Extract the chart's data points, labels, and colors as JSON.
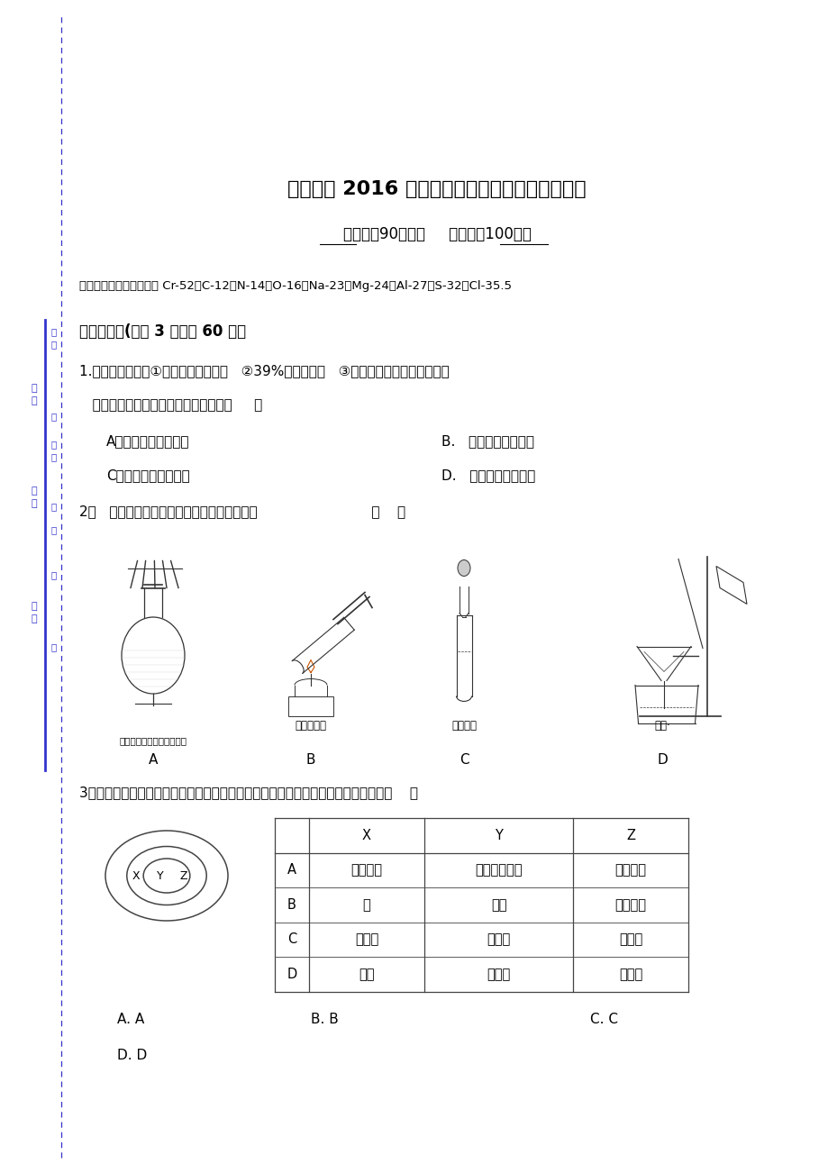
{
  "bg_color": "#ffffff",
  "page_width": 9.2,
  "page_height": 13.02,
  "title": "龙台中学 2016 年下期中期考试＿化学＿学科试题",
  "subtitle": "时间：＿90＿分钟     满分：＿100＿分",
  "atomic_mass": "可能用到的相对原子质量 Cr-52，C-12，N-14，O-16，Na-23，Mg-24，Al-27，S-32，Cl-35.5",
  "section1": "一、单选题(每题 3 分，共 60 分）",
  "q1_text1": "1.现有三组溶液：①汽油和氯化钠溶液   ②39%的乙醇溶液   ③氯化钠和单质溴的水溶液，",
  "q1_text2": "   分离以上各混合液的正确方法依次是（     ）",
  "q1_A": "A．分液、萃取、蒸馏",
  "q1_B": "B.   萃取、蒸馏、分液",
  "q1_C": "C．分液、蒸馏、萃取",
  "q1_D": "D.   蒸馏、萃取、分液",
  "q2_text": "2．   如图所示，下列实验操作与方法正确的是                          （    ）",
  "q2_img_labels": [
    "检查容量瓶是否漏水的方法",
    "给溶液加热",
    "滴加液体",
    "过滤·"
  ],
  "q2_img_letters": [
    "A",
    "B",
    "C",
    "D"
  ],
  "q3_text": "3、如图用交叉分类法表示了一些物质或概念之间的从属或包含关系，其中正确的是（    ）",
  "q3_table_headers": [
    "",
    "X",
    "Y",
    "Z"
  ],
  "q3_table_rows": [
    [
      "A",
      "置换反应",
      "氧化还原反应",
      "离子反应"
    ],
    [
      "B",
      "铜",
      "单质",
      "非电解质"
    ],
    [
      "C",
      "石灰水",
      "电解质",
      "分散系"
    ],
    [
      "D",
      "液氨",
      "化合物",
      "纯净物"
    ]
  ],
  "q3_answers_row1": [
    "A. A",
    "B. B",
    "C. C"
  ],
  "q3_answers_row2": [
    "D. D"
  ],
  "side_color": "#3333cc",
  "dashed_color": "#3333cc",
  "text_color": "#000000",
  "title_fontsize": 16,
  "body_fontsize": 11,
  "small_fontsize": 9.5
}
